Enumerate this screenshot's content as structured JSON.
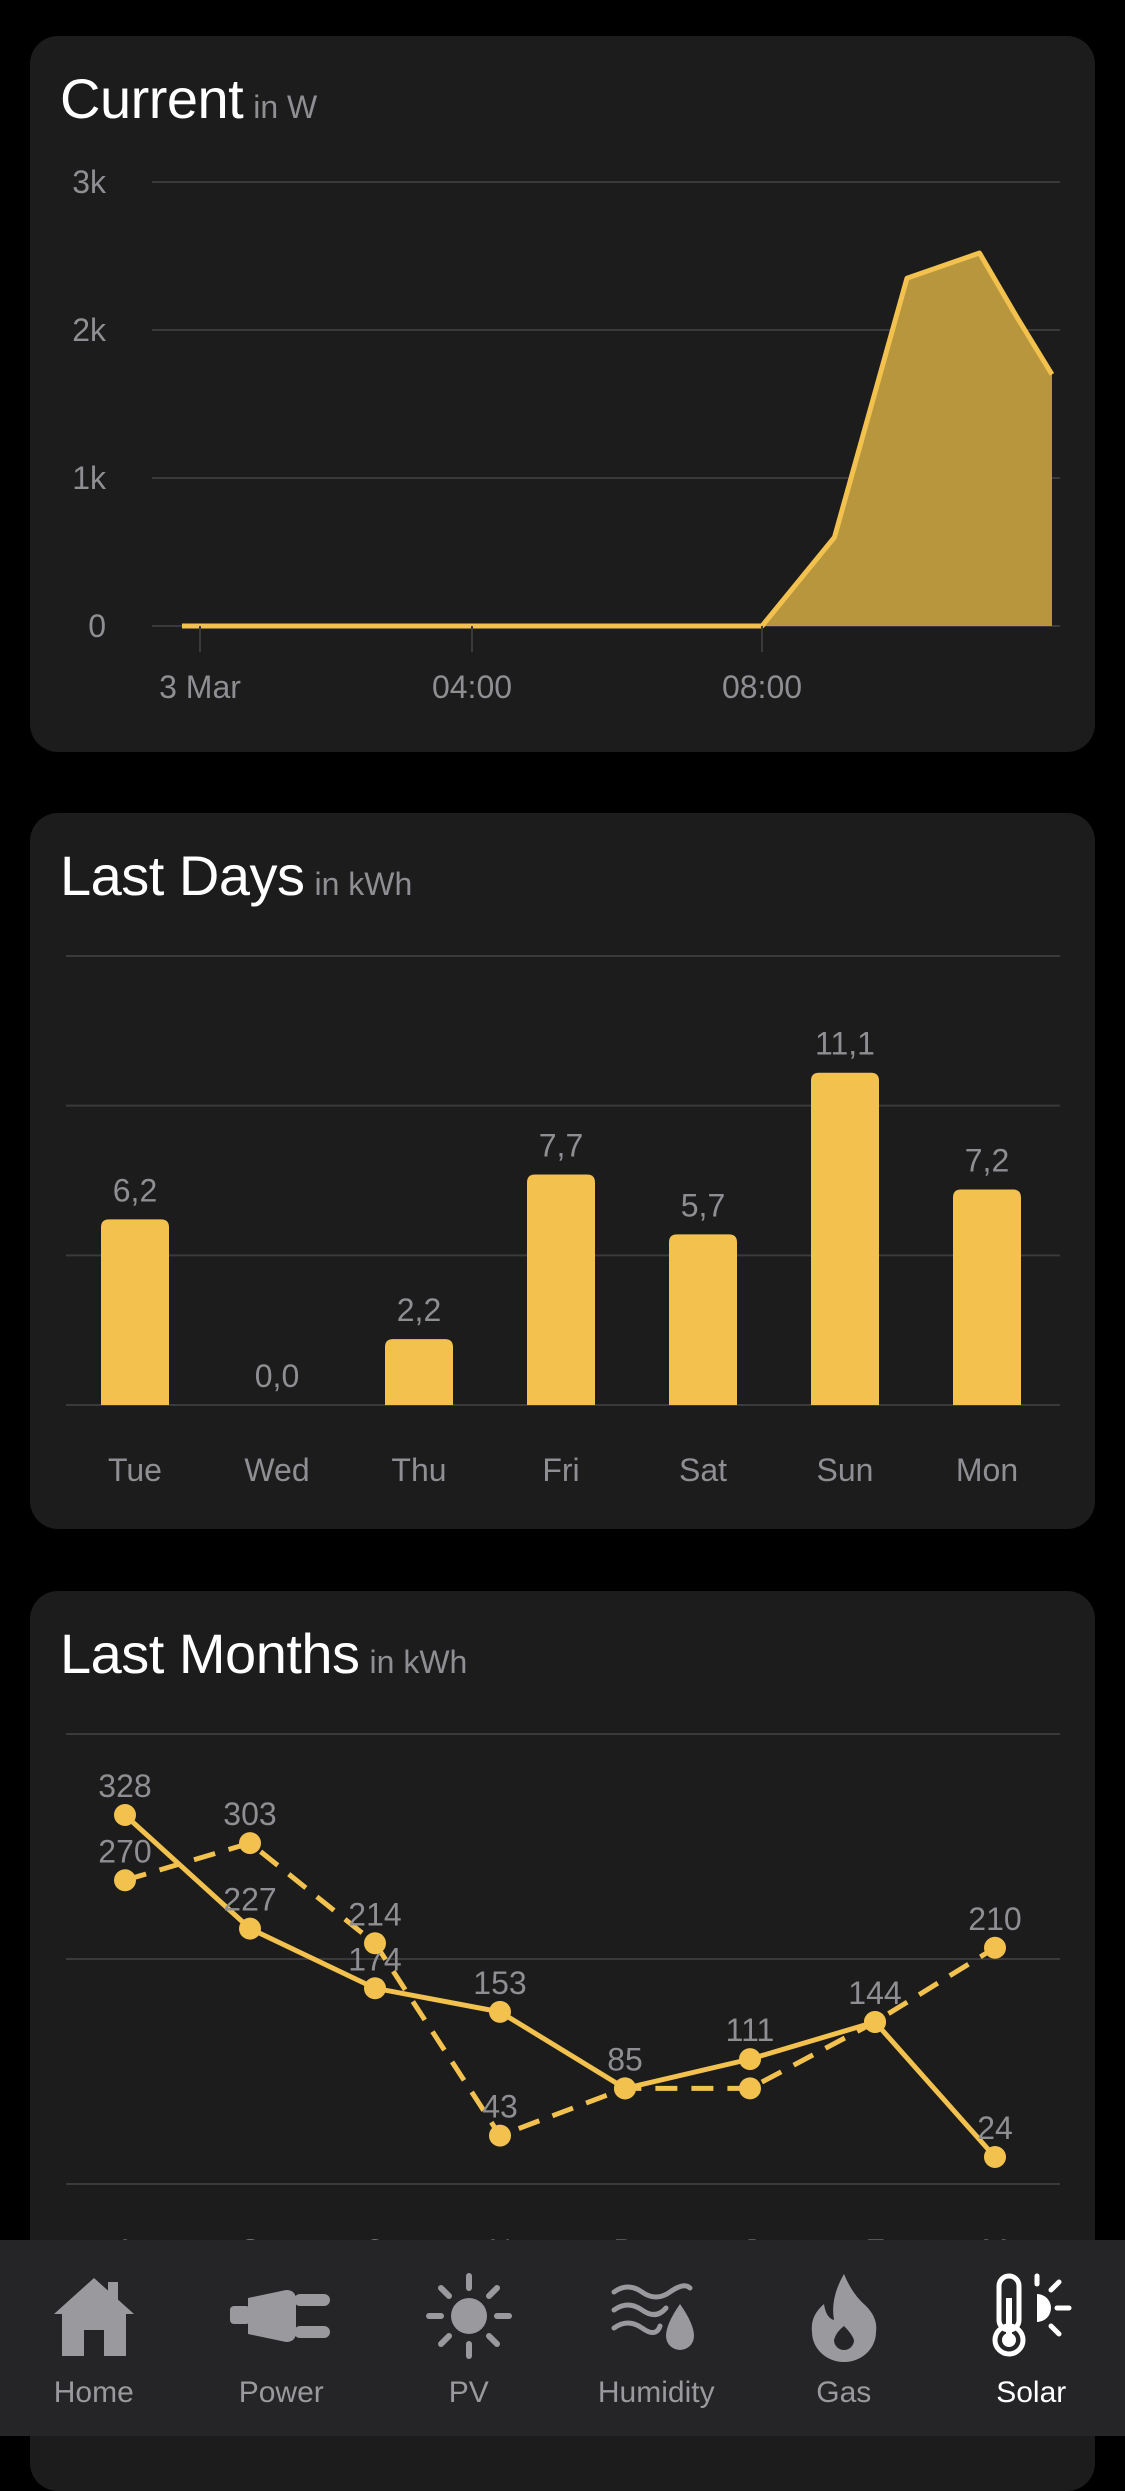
{
  "cards": {
    "current": {
      "title": "Current",
      "unit": "in W"
    },
    "days": {
      "title": "Last Days",
      "unit": "in kWh"
    },
    "months": {
      "title": "Last Months",
      "unit": "in kWh"
    }
  },
  "colors": {
    "accent": "#f2c14e",
    "fill": "#b8963e",
    "background": "#000000",
    "card": "#1c1c1c",
    "tabbar": "#252527",
    "muted": "#8e8e93"
  },
  "tabs": [
    {
      "label": "Home",
      "icon": "home-icon",
      "active": false
    },
    {
      "label": "Power",
      "icon": "plug-icon",
      "active": false
    },
    {
      "label": "PV",
      "icon": "sun-icon",
      "active": false
    },
    {
      "label": "Humidity",
      "icon": "humidity-icon",
      "active": false
    },
    {
      "label": "Gas",
      "icon": "flame-icon",
      "active": false
    },
    {
      "label": "Solar",
      "icon": "thermometer-sun-icon",
      "active": true
    }
  ],
  "chart_data": [
    {
      "type": "area",
      "title": "Current",
      "ylabel": "in W",
      "ylim": [
        0,
        3000
      ],
      "yticks": [
        0,
        1000,
        2000,
        3000
      ],
      "ytick_labels": [
        "0",
        "1k",
        "2k",
        "3k"
      ],
      "xlim": [
        0,
        12
      ],
      "xticks": [
        0,
        4,
        8
      ],
      "xtick_labels": [
        "3 Mar",
        "04:00",
        "08:00"
      ],
      "grid": true,
      "x": [
        0,
        8,
        9,
        10,
        11,
        11.5,
        12
      ],
      "values": [
        0,
        0,
        600,
        2350,
        2520,
        2100,
        1700
      ]
    },
    {
      "type": "bar",
      "title": "Last Days",
      "ylabel": "in kWh",
      "ylim": [
        0,
        15
      ],
      "grid": true,
      "categories": [
        "Tue",
        "Wed",
        "Thu",
        "Fri",
        "Sat",
        "Sun",
        "Mon"
      ],
      "values": [
        6.2,
        0.0,
        2.2,
        7.7,
        5.7,
        11.1,
        7.2
      ],
      "labels": [
        "6,2",
        "0,0",
        "2,2",
        "7,7",
        "5,7",
        "11,1",
        "7,2"
      ]
    },
    {
      "type": "line",
      "title": "Last Months",
      "ylabel": "in kWh",
      "ylim": [
        0,
        400
      ],
      "grid": true,
      "categories": [
        "A",
        "S",
        "O",
        "N",
        "D",
        "J",
        "F",
        "M"
      ],
      "series": [
        {
          "style": "solid",
          "values": [
            328,
            227,
            174,
            153,
            85,
            111,
            144,
            24
          ],
          "labels": [
            "328",
            "227",
            "174",
            "153",
            "85",
            "111",
            "144",
            "24"
          ]
        },
        {
          "style": "dashed",
          "values": [
            270,
            303,
            214,
            43,
            85,
            85,
            144,
            210
          ],
          "labels": [
            "270",
            "303",
            "214",
            "43",
            "",
            "",
            "",
            "210"
          ]
        }
      ]
    }
  ]
}
